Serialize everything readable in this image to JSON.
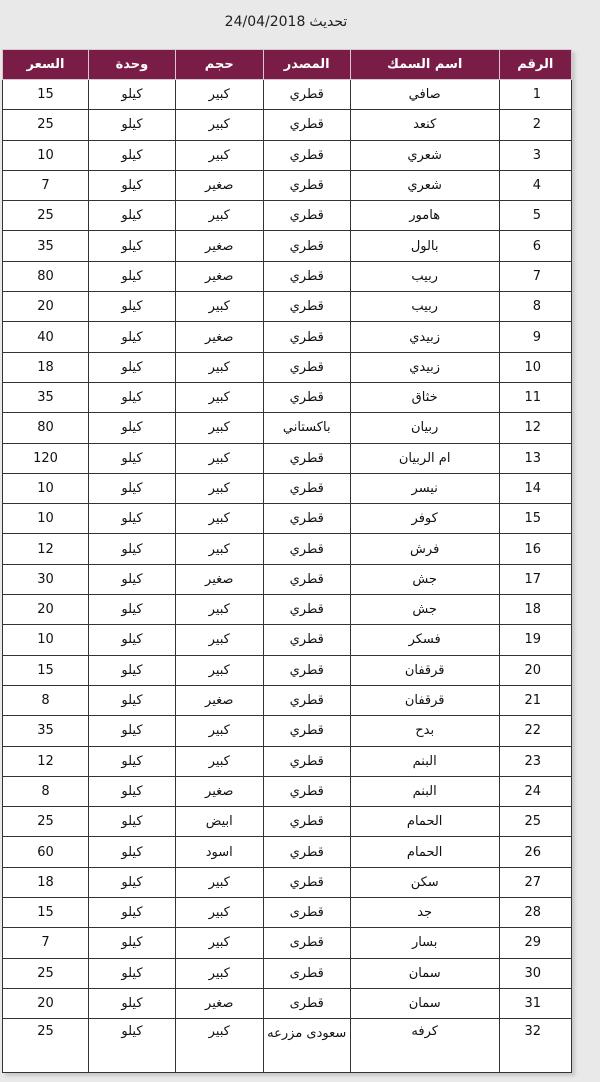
{
  "update": {
    "label": "تحديث",
    "date": "24/04/2018"
  },
  "headers": {
    "num": "الرقم",
    "name": "اسم السمك",
    "source": "المصدر",
    "size": "حجم",
    "unit": "وحدة",
    "price": "السعر"
  },
  "rows": [
    {
      "num": "1",
      "name": "صافي",
      "source": "قطري",
      "size": "كبير",
      "unit": "كيلو",
      "price": "15"
    },
    {
      "num": "2",
      "name": "كنعد",
      "source": "قطري",
      "size": "كبير",
      "unit": "كيلو",
      "price": "25"
    },
    {
      "num": "3",
      "name": "شعري",
      "source": "قطري",
      "size": "كبير",
      "unit": "كيلو",
      "price": "10"
    },
    {
      "num": "4",
      "name": "شعري",
      "source": "قطري",
      "size": "صغير",
      "unit": "كيلو",
      "price": "7"
    },
    {
      "num": "5",
      "name": "هامور",
      "source": "قطري",
      "size": "كبير",
      "unit": "كيلو",
      "price": "25"
    },
    {
      "num": "6",
      "name": "بالول",
      "source": "قطري",
      "size": "صغير",
      "unit": "كيلو",
      "price": "35"
    },
    {
      "num": "7",
      "name": "ربيب",
      "source": "قطري",
      "size": "صغير",
      "unit": "كيلو",
      "price": "80"
    },
    {
      "num": "8",
      "name": "ربيب",
      "source": "قطري",
      "size": "كبير",
      "unit": "كيلو",
      "price": "20"
    },
    {
      "num": "9",
      "name": "زبيدي",
      "source": "قطري",
      "size": "صغير",
      "unit": "كيلو",
      "price": "40"
    },
    {
      "num": "10",
      "name": "زبيدي",
      "source": "قطري",
      "size": "كبير",
      "unit": "كيلو",
      "price": "18"
    },
    {
      "num": "11",
      "name": "خثاق",
      "source": "قطري",
      "size": "كبير",
      "unit": "كيلو",
      "price": "35"
    },
    {
      "num": "12",
      "name": "ربيان",
      "source": "باكستاني",
      "size": "كبير",
      "unit": "كيلو",
      "price": "80"
    },
    {
      "num": "13",
      "name": "ام الربيان",
      "source": "قطري",
      "size": "كبير",
      "unit": "كيلو",
      "price": "120"
    },
    {
      "num": "14",
      "name": "نيسر",
      "source": "قطري",
      "size": "كبير",
      "unit": "كيلو",
      "price": "10"
    },
    {
      "num": "15",
      "name": "كوفر",
      "source": "قطري",
      "size": "كبير",
      "unit": "كيلو",
      "price": "10"
    },
    {
      "num": "16",
      "name": "فرش",
      "source": "قطري",
      "size": "كبير",
      "unit": "كيلو",
      "price": "12"
    },
    {
      "num": "17",
      "name": "جش",
      "source": "قطري",
      "size": "صغير",
      "unit": "كيلو",
      "price": "30"
    },
    {
      "num": "18",
      "name": "جش",
      "source": "قطري",
      "size": "كبير",
      "unit": "كيلو",
      "price": "20"
    },
    {
      "num": "19",
      "name": "فسكر",
      "source": "قطري",
      "size": "كبير",
      "unit": "كيلو",
      "price": "10"
    },
    {
      "num": "20",
      "name": "قرقفان",
      "source": "قطري",
      "size": "كبير",
      "unit": "كيلو",
      "price": "15"
    },
    {
      "num": "21",
      "name": "قرقفان",
      "source": "قطري",
      "size": "صغير",
      "unit": "كيلو",
      "price": "8"
    },
    {
      "num": "22",
      "name": "بدح",
      "source": "قطري",
      "size": "كبير",
      "unit": "كيلو",
      "price": "35"
    },
    {
      "num": "23",
      "name": "البنم",
      "source": "قطري",
      "size": "كبير",
      "unit": "كيلو",
      "price": "12"
    },
    {
      "num": "24",
      "name": "البنم",
      "source": "قطري",
      "size": "صغير",
      "unit": "كيلو",
      "price": "8"
    },
    {
      "num": "25",
      "name": "الحمام",
      "source": "قطري",
      "size": "ابيض",
      "unit": "كيلو",
      "price": "25"
    },
    {
      "num": "26",
      "name": "الحمام",
      "source": "قطري",
      "size": "اسود",
      "unit": "كيلو",
      "price": "60"
    },
    {
      "num": "27",
      "name": "سكن",
      "source": "قطري",
      "size": "كبير",
      "unit": "كيلو",
      "price": "18"
    },
    {
      "num": "28",
      "name": "جد",
      "source": "قطرى",
      "size": "كبير",
      "unit": "كيلو",
      "price": "15"
    },
    {
      "num": "29",
      "name": "بسار",
      "source": "قطرى",
      "size": "كبير",
      "unit": "كيلو",
      "price": "7"
    },
    {
      "num": "30",
      "name": "سمان",
      "source": "قطرى",
      "size": "كبير",
      "unit": "كيلو",
      "price": "25"
    },
    {
      "num": "31",
      "name": "سمان",
      "source": "قطرى",
      "size": "صغير",
      "unit": "كيلو",
      "price": "20"
    },
    {
      "num": "32",
      "name": "كرفه",
      "source": "سعودى مزرعه",
      "size": "كبير",
      "unit": "كيلو",
      "price": "25"
    }
  ],
  "colors": {
    "header_bg": "#7a1d46",
    "header_text": "#ffffff",
    "page_bg": "#e9e9e9"
  }
}
